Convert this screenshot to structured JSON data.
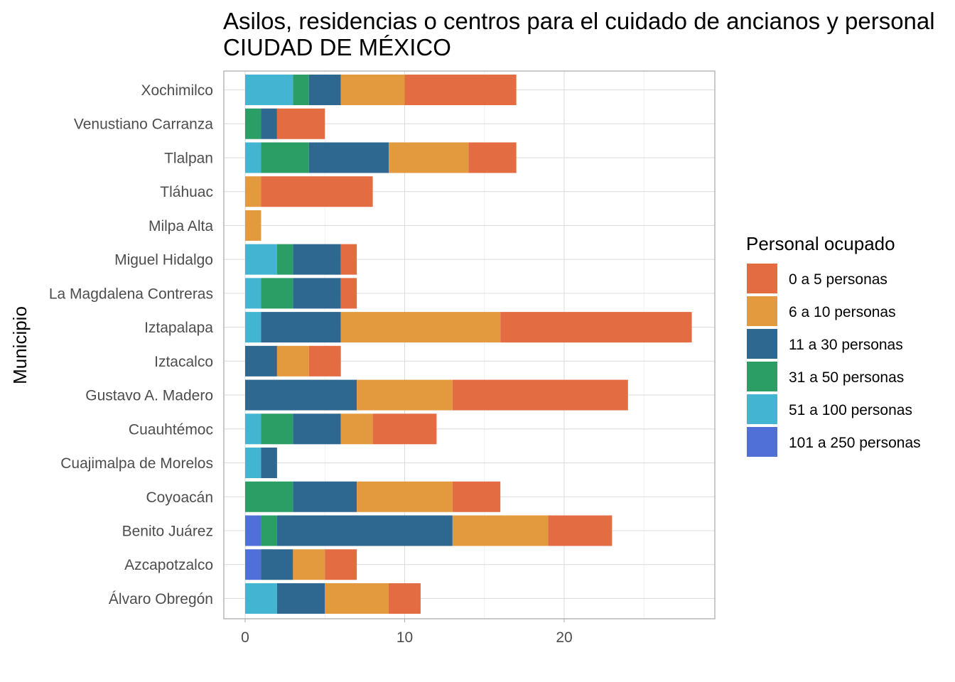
{
  "chart_data": {
    "type": "bar",
    "orientation": "horizontal",
    "stacked": true,
    "title": "Asilos, residencias o centros para el cuidado de ancianos y personal",
    "subtitle": "CIUDAD DE MÉXICO",
    "xlabel": "",
    "ylabel": "Municipio",
    "xlim": [
      -1.4,
      29.4
    ],
    "xticks": [
      0,
      10,
      20
    ],
    "grid": true,
    "legend_title": "Personal ocupado",
    "legend_position": "right",
    "categories": [
      "Xochimilco",
      "Venustiano Carranza",
      "Tlalpan",
      "Tláhuac",
      "Milpa Alta",
      "Miguel Hidalgo",
      "La Magdalena Contreras",
      "Iztapalapa",
      "Iztacalco",
      "Gustavo A. Madero",
      "Cuauhtémoc",
      "Cuajimalpa de Morelos",
      "Coyoacán",
      "Benito Juárez",
      "Azcapotzalco",
      "Álvaro Obregón"
    ],
    "series": [
      {
        "name": "0 a 5 personas",
        "color": "#e36c42",
        "values": [
          7,
          3,
          3,
          7,
          0,
          1,
          1,
          12,
          2,
          11,
          4,
          0,
          3,
          4,
          2,
          2
        ]
      },
      {
        "name": "6 a 10 personas",
        "color": "#e39a3f",
        "values": [
          4,
          0,
          5,
          1,
          1,
          0,
          0,
          10,
          2,
          6,
          2,
          0,
          6,
          6,
          2,
          4
        ]
      },
      {
        "name": "11 a 30 personas",
        "color": "#2e6891",
        "values": [
          2,
          1,
          5,
          0,
          0,
          3,
          3,
          5,
          2,
          7,
          3,
          1,
          4,
          11,
          2,
          3
        ]
      },
      {
        "name": "31 a 50 personas",
        "color": "#2b9e66",
        "values": [
          1,
          1,
          3,
          0,
          0,
          1,
          2,
          0,
          0,
          0,
          2,
          0,
          3,
          1,
          0,
          0
        ]
      },
      {
        "name": "51 a 100 personas",
        "color": "#43b4d2",
        "values": [
          3,
          0,
          1,
          0,
          0,
          2,
          1,
          1,
          0,
          0,
          1,
          1,
          0,
          0,
          0,
          2
        ]
      },
      {
        "name": "101 a 250 personas",
        "color": "#5170d7",
        "values": [
          0,
          0,
          0,
          0,
          0,
          0,
          0,
          0,
          0,
          0,
          0,
          0,
          0,
          1,
          1,
          0
        ]
      }
    ]
  }
}
